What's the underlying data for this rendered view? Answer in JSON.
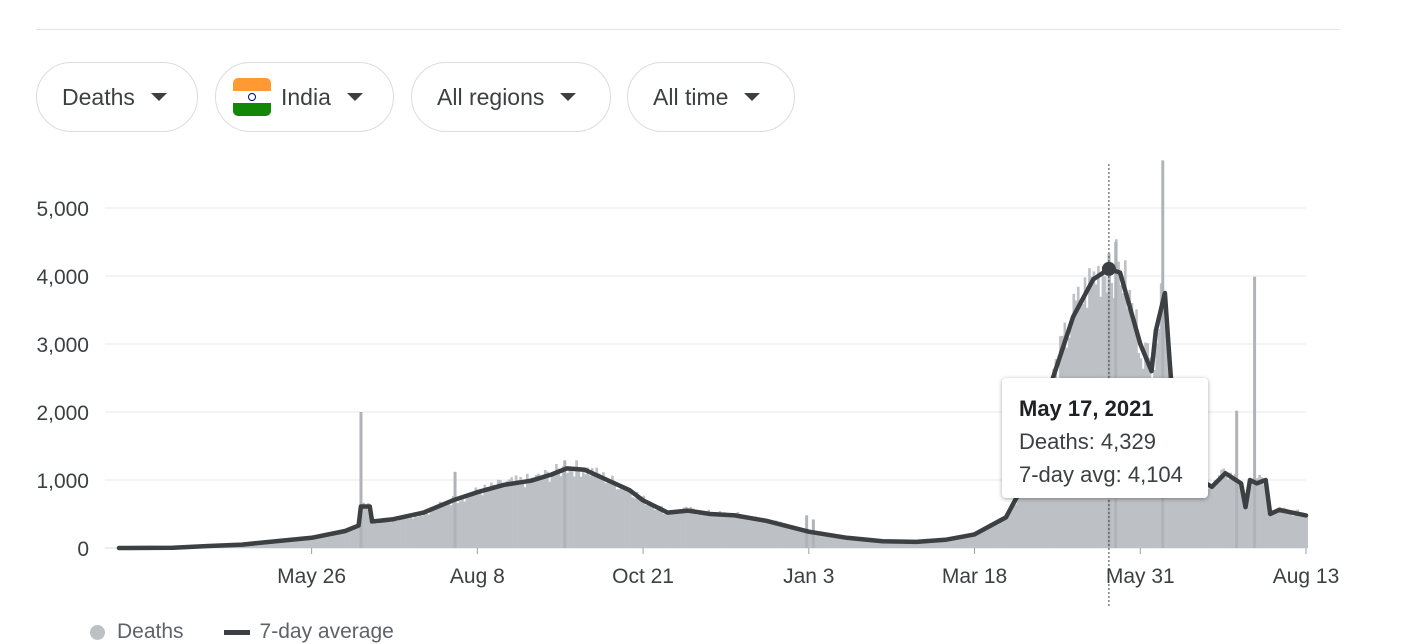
{
  "filters": {
    "metric": "Deaths",
    "country": "India",
    "region": "All regions",
    "period": "All time"
  },
  "icons": {
    "caret": "caret-down-icon",
    "flag": "india-flag-icon"
  },
  "colors": {
    "bars": "#bdc1c6",
    "avg_line": "#3c4043",
    "grid": "#e8eaed"
  },
  "tooltip": {
    "date": "May 17, 2021",
    "deaths_label": "Deaths: 4,329",
    "avg_label": "7-day avg: 4,104"
  },
  "legend": {
    "bars_label": "Deaths",
    "line_label": "7-day average"
  },
  "chart_data": {
    "type": "bar",
    "ylim": [
      0,
      5700
    ],
    "y_ticks": [
      0,
      1000,
      2000,
      3000,
      4000,
      5000
    ],
    "y_tick_labels": [
      "0",
      "1,000",
      "2,000",
      "3,000",
      "4,000",
      "5,000"
    ],
    "x_ticks": [
      {
        "label": "May 26",
        "date": "2020-05-26"
      },
      {
        "label": "Aug 8",
        "date": "2020-08-08"
      },
      {
        "label": "Oct 21",
        "date": "2020-10-21"
      },
      {
        "label": "Jan 3",
        "date": "2021-01-03"
      },
      {
        "label": "Mar 18",
        "date": "2021-03-18"
      },
      {
        "label": "May 31",
        "date": "2021-05-31"
      },
      {
        "label": "Aug 13",
        "date": "2021-08-13"
      }
    ],
    "x_range": [
      "2020-03-01",
      "2021-08-13"
    ],
    "grid": true,
    "legend_position": "bottom-left",
    "highlight": {
      "date": "2021-05-17",
      "deaths": 4329,
      "avg": 4104
    },
    "series": [
      {
        "name": "7-day average",
        "kind": "line",
        "points": [
          [
            "2020-03-01",
            0
          ],
          [
            "2020-03-25",
            5
          ],
          [
            "2020-04-10",
            30
          ],
          [
            "2020-04-25",
            50
          ],
          [
            "2020-05-10",
            100
          ],
          [
            "2020-05-26",
            150
          ],
          [
            "2020-06-10",
            250
          ],
          [
            "2020-06-16",
            330
          ],
          [
            "2020-06-17",
            610
          ],
          [
            "2020-06-21",
            610
          ],
          [
            "2020-06-22",
            390
          ],
          [
            "2020-07-01",
            420
          ],
          [
            "2020-07-15",
            520
          ],
          [
            "2020-07-28",
            700
          ],
          [
            "2020-08-08",
            820
          ],
          [
            "2020-08-20",
            930
          ],
          [
            "2020-09-01",
            990
          ],
          [
            "2020-09-10",
            1080
          ],
          [
            "2020-09-17",
            1170
          ],
          [
            "2020-09-25",
            1150
          ],
          [
            "2020-10-05",
            1000
          ],
          [
            "2020-10-15",
            850
          ],
          [
            "2020-10-21",
            700
          ],
          [
            "2020-11-01",
            520
          ],
          [
            "2020-11-10",
            550
          ],
          [
            "2020-11-20",
            500
          ],
          [
            "2020-12-01",
            480
          ],
          [
            "2020-12-15",
            400
          ],
          [
            "2021-01-03",
            240
          ],
          [
            "2021-01-20",
            150
          ],
          [
            "2021-02-05",
            100
          ],
          [
            "2021-02-20",
            90
          ],
          [
            "2021-03-05",
            120
          ],
          [
            "2021-03-18",
            200
          ],
          [
            "2021-04-01",
            450
          ],
          [
            "2021-04-10",
            1000
          ],
          [
            "2021-04-20",
            2300
          ],
          [
            "2021-05-01",
            3400
          ],
          [
            "2021-05-10",
            3950
          ],
          [
            "2021-05-17",
            4104
          ],
          [
            "2021-05-22",
            4050
          ],
          [
            "2021-05-31",
            3000
          ],
          [
            "2021-06-05",
            2600
          ],
          [
            "2021-06-07",
            3200
          ],
          [
            "2021-06-11",
            3750
          ],
          [
            "2021-06-13",
            2800
          ],
          [
            "2021-06-16",
            1500
          ],
          [
            "2021-06-24",
            1050
          ],
          [
            "2021-07-02",
            900
          ],
          [
            "2021-07-08",
            1100
          ],
          [
            "2021-07-15",
            950
          ],
          [
            "2021-07-17",
            600
          ],
          [
            "2021-07-19",
            1000
          ],
          [
            "2021-07-22",
            950
          ],
          [
            "2021-07-26",
            1000
          ],
          [
            "2021-07-28",
            500
          ],
          [
            "2021-08-01",
            560
          ],
          [
            "2021-08-13",
            480
          ]
        ]
      },
      {
        "name": "Deaths",
        "kind": "bar",
        "spikes": [
          [
            "2020-06-17",
            2000
          ],
          [
            "2020-07-29",
            1120
          ],
          [
            "2020-09-16",
            1290
          ],
          [
            "2021-01-02",
            480
          ],
          [
            "2021-01-05",
            420
          ],
          [
            "2021-05-17",
            4329
          ],
          [
            "2021-05-20",
            4500
          ],
          [
            "2021-06-10",
            5700
          ],
          [
            "2021-07-13",
            2020
          ],
          [
            "2021-07-21",
            3990
          ]
        ]
      }
    ]
  }
}
